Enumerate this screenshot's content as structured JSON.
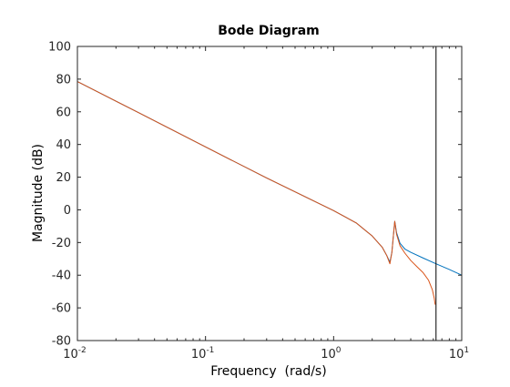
{
  "chart_data": {
    "type": "line",
    "title": "Bode Diagram",
    "xlabel": "Frequency  (rad/s)",
    "ylabel": "Magnitude (dB)",
    "xscale": "log",
    "xlim": [
      0.01,
      10
    ],
    "ylim": [
      -80,
      100
    ],
    "x_ticks": [
      {
        "value": 0.01,
        "base": "10",
        "exp": "-2"
      },
      {
        "value": 0.1,
        "base": "10",
        "exp": "-1"
      },
      {
        "value": 1,
        "base": "10",
        "exp": "0"
      },
      {
        "value": 10,
        "base": "10",
        "exp": "1"
      }
    ],
    "y_ticks": [
      {
        "value": -80,
        "label": "-80"
      },
      {
        "value": -60,
        "label": "-60"
      },
      {
        "value": -40,
        "label": "-40"
      },
      {
        "value": -20,
        "label": "-20"
      },
      {
        "value": 0,
        "label": "0"
      },
      {
        "value": 20,
        "label": "20"
      },
      {
        "value": 40,
        "label": "40"
      },
      {
        "value": 60,
        "label": "60"
      },
      {
        "value": 80,
        "label": "80"
      },
      {
        "value": 100,
        "label": "100"
      }
    ],
    "grid": false,
    "vertical_line": {
      "x": 6.3,
      "color": "#000000"
    },
    "series": [
      {
        "color": "#0072BD",
        "x": [
          0.01,
          0.03,
          0.1,
          0.3,
          1.0,
          1.5,
          2.0,
          2.4,
          2.6,
          2.75,
          2.85,
          2.95,
          3.0,
          3.1,
          3.3,
          3.6,
          4.0,
          5.0,
          6.3,
          8.0,
          10.0
        ],
        "y": [
          78.5,
          59.5,
          38.5,
          19.5,
          -0.5,
          -8.0,
          -16.0,
          -23.0,
          -28.0,
          -32.0,
          -26.0,
          -13.0,
          -7.0,
          -14.0,
          -20.5,
          -24.0,
          -26.0,
          -29.5,
          -33.0,
          -36.5,
          -40.0
        ]
      },
      {
        "color": "#D95319",
        "x": [
          0.01,
          0.03,
          0.1,
          0.3,
          1.0,
          1.5,
          2.0,
          2.4,
          2.6,
          2.75,
          2.85,
          2.95,
          3.0,
          3.1,
          3.3,
          3.6,
          4.0,
          4.5,
          5.0,
          5.5,
          5.9,
          6.1,
          6.2
        ],
        "y": [
          78.5,
          59.5,
          38.5,
          19.5,
          -0.5,
          -8.0,
          -16.0,
          -23.0,
          -28.0,
          -33.0,
          -26.0,
          -13.0,
          -7.0,
          -15.0,
          -22.0,
          -26.5,
          -31.0,
          -35.0,
          -38.5,
          -43.0,
          -49.0,
          -54.0,
          -58.0
        ]
      }
    ]
  }
}
